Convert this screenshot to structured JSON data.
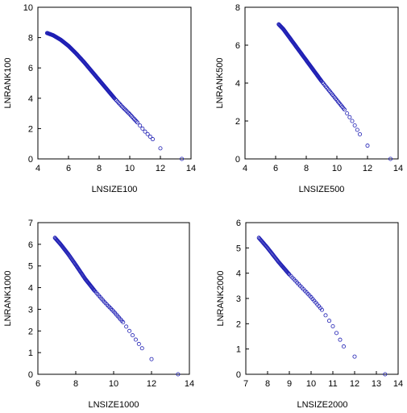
{
  "chart_data": [
    {
      "type": "scatter",
      "xlabel": "LNSIZE100",
      "ylabel": "LNRANK100",
      "xlim": [
        4,
        14
      ],
      "ylim": [
        0,
        10
      ],
      "xticks": [
        4,
        6,
        8,
        10,
        12,
        14
      ],
      "yticks": [
        0,
        2,
        4,
        6,
        8,
        10
      ],
      "points": [
        [
          4.6,
          8.3
        ],
        [
          5.0,
          8.15
        ],
        [
          5.5,
          7.85
        ],
        [
          6.0,
          7.45
        ],
        [
          6.5,
          6.95
        ],
        [
          7.0,
          6.4
        ],
        [
          7.5,
          5.8
        ],
        [
          8.0,
          5.2
        ],
        [
          8.5,
          4.6
        ],
        [
          9.0,
          4.0
        ],
        [
          9.5,
          3.45
        ],
        [
          10.0,
          2.95
        ],
        [
          10.5,
          2.4
        ],
        [
          11.0,
          1.8
        ],
        [
          11.5,
          1.3
        ],
        [
          12.0,
          0.7
        ],
        [
          13.4,
          0.0
        ]
      ]
    },
    {
      "type": "scatter",
      "xlabel": "LNSIZE500",
      "ylabel": "LNRANK500",
      "xlim": [
        4,
        14
      ],
      "ylim": [
        0,
        8
      ],
      "xticks": [
        4,
        6,
        8,
        10,
        12,
        14
      ],
      "yticks": [
        0,
        2,
        4,
        6,
        8
      ],
      "points": [
        [
          6.2,
          7.1
        ],
        [
          6.5,
          6.85
        ],
        [
          7.0,
          6.3
        ],
        [
          7.5,
          5.75
        ],
        [
          8.0,
          5.2
        ],
        [
          8.5,
          4.65
        ],
        [
          9.0,
          4.1
        ],
        [
          9.5,
          3.6
        ],
        [
          10.0,
          3.1
        ],
        [
          10.5,
          2.6
        ],
        [
          11.0,
          2.0
        ],
        [
          11.5,
          1.3
        ],
        [
          12.0,
          0.7
        ],
        [
          13.5,
          0.0
        ]
      ]
    },
    {
      "type": "scatter",
      "xlabel": "LNSIZE1000",
      "ylabel": "LNRANK1000",
      "xlim": [
        6,
        14
      ],
      "ylim": [
        0,
        7
      ],
      "xticks": [
        6,
        8,
        10,
        12,
        14
      ],
      "yticks": [
        0,
        1,
        2,
        3,
        4,
        5,
        6,
        7
      ],
      "points": [
        [
          6.9,
          6.3
        ],
        [
          7.2,
          6.0
        ],
        [
          7.6,
          5.55
        ],
        [
          8.0,
          5.05
        ],
        [
          8.5,
          4.4
        ],
        [
          9.0,
          3.85
        ],
        [
          9.5,
          3.35
        ],
        [
          10.0,
          2.9
        ],
        [
          10.5,
          2.4
        ],
        [
          11.0,
          1.8
        ],
        [
          11.5,
          1.2
        ],
        [
          12.0,
          0.7
        ],
        [
          13.4,
          0.0
        ]
      ]
    },
    {
      "type": "scatter",
      "xlabel": "LNSIZE2000",
      "ylabel": "LNRANK2000",
      "xlim": [
        7,
        14
      ],
      "ylim": [
        0,
        6
      ],
      "xticks": [
        7,
        8,
        9,
        10,
        11,
        12,
        13,
        14
      ],
      "yticks": [
        0,
        1,
        2,
        3,
        4,
        5,
        6
      ],
      "points": [
        [
          7.6,
          5.4
        ],
        [
          8.0,
          5.0
        ],
        [
          8.5,
          4.45
        ],
        [
          9.0,
          3.95
        ],
        [
          9.5,
          3.5
        ],
        [
          10.0,
          3.05
        ],
        [
          10.5,
          2.55
        ],
        [
          11.0,
          1.9
        ],
        [
          11.5,
          1.1
        ],
        [
          12.0,
          0.7
        ],
        [
          13.4,
          0.0
        ]
      ]
    }
  ]
}
